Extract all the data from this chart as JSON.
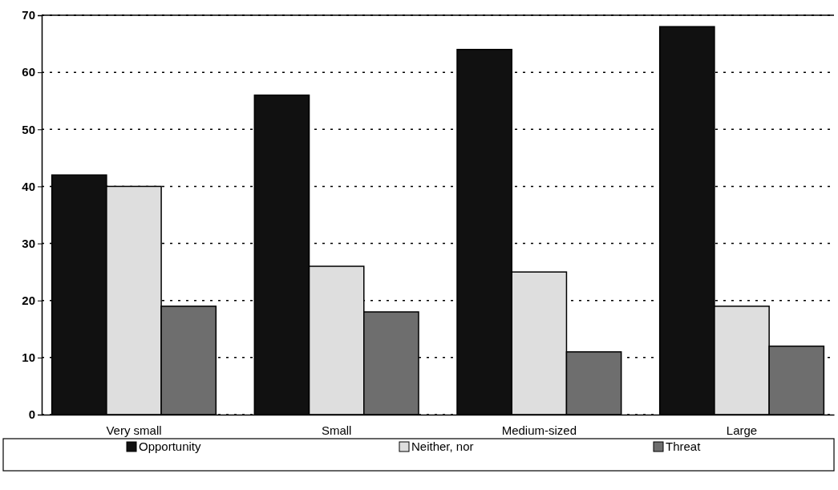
{
  "chart_data": {
    "type": "bar",
    "categories": [
      "Very small",
      "Small",
      "Medium-sized",
      "Large"
    ],
    "series": [
      {
        "name": "Opportunity",
        "color": "#111111",
        "values": [
          42,
          56,
          64,
          68
        ]
      },
      {
        "name": "Neither, nor",
        "color": "#dedede",
        "values": [
          40,
          26,
          25,
          19
        ]
      },
      {
        "name": "Threat",
        "color": "#6e6e6e",
        "values": [
          19,
          18,
          11,
          12
        ]
      }
    ],
    "ylim": [
      0,
      70
    ],
    "yticks": [
      0,
      10,
      20,
      30,
      40,
      50,
      60,
      70
    ],
    "grid": "y",
    "legend": "bottom"
  }
}
